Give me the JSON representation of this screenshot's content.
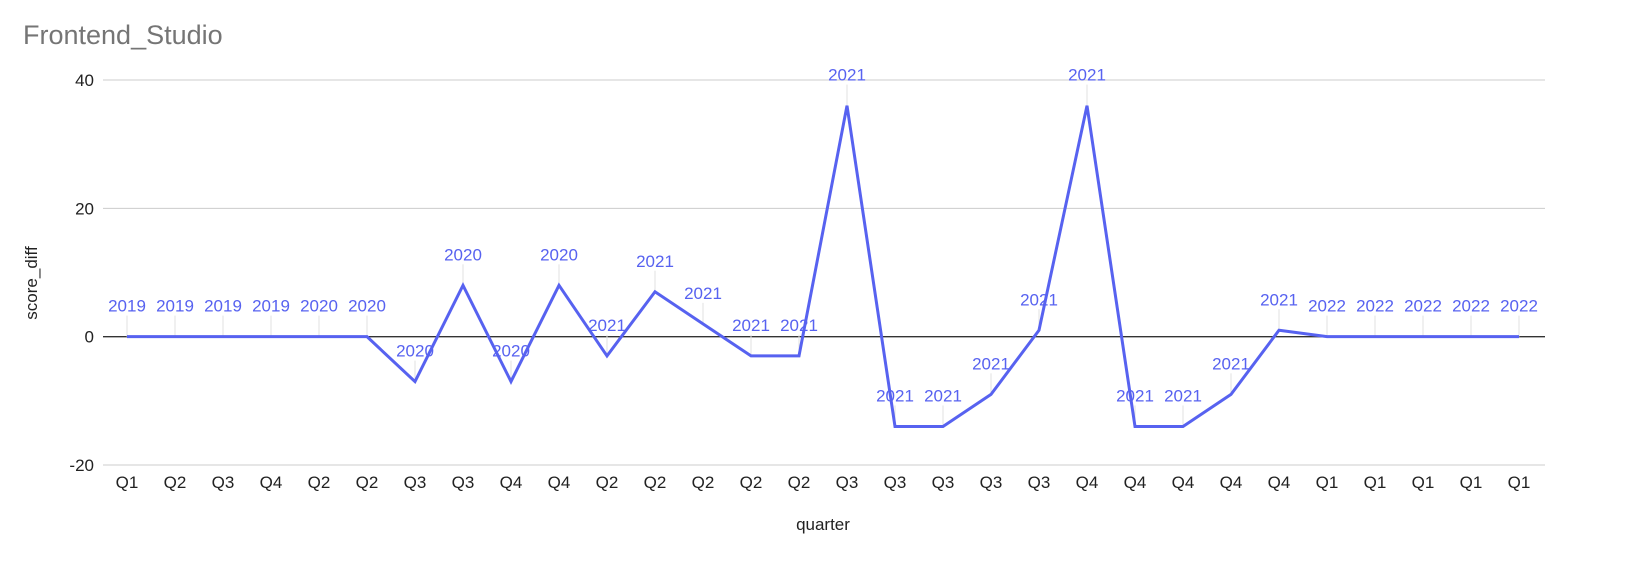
{
  "chart_data": {
    "type": "line",
    "title": "Frontend_Studio",
    "xlabel": "quarter",
    "ylabel": "score_diff",
    "ylim": [
      -20,
      40
    ],
    "yticks": [
      -20,
      0,
      20,
      40
    ],
    "grid": true,
    "legend": "none",
    "color": "#5762f0",
    "categories": [
      "Q1",
      "Q2",
      "Q3",
      "Q4",
      "Q2",
      "Q2",
      "Q3",
      "Q3",
      "Q4",
      "Q4",
      "Q2",
      "Q2",
      "Q2",
      "Q2",
      "Q2",
      "Q3",
      "Q3",
      "Q3",
      "Q3",
      "Q3",
      "Q4",
      "Q4",
      "Q4",
      "Q4",
      "Q4",
      "Q1",
      "Q1",
      "Q1",
      "Q1",
      "Q1"
    ],
    "point_labels": [
      "2019",
      "2019",
      "2019",
      "2019",
      "2020",
      "2020",
      "2020",
      "2020",
      "2020",
      "2020",
      "2021",
      "2021",
      "2021",
      "2021",
      "2021",
      "2021",
      "2021",
      "2021",
      "2021",
      "2021",
      "2021",
      "2021",
      "2021",
      "2021",
      "2021",
      "2022",
      "2022",
      "2022",
      "2022",
      "2022"
    ],
    "series": [
      {
        "values": [
          0,
          0,
          0,
          0,
          0,
          0,
          -7,
          8,
          -7,
          8,
          -3,
          7,
          2,
          -3,
          -3,
          36,
          -14,
          -14,
          -9,
          1,
          36,
          -14,
          -14,
          -9,
          1,
          0,
          0,
          0,
          0,
          0
        ]
      }
    ]
  }
}
